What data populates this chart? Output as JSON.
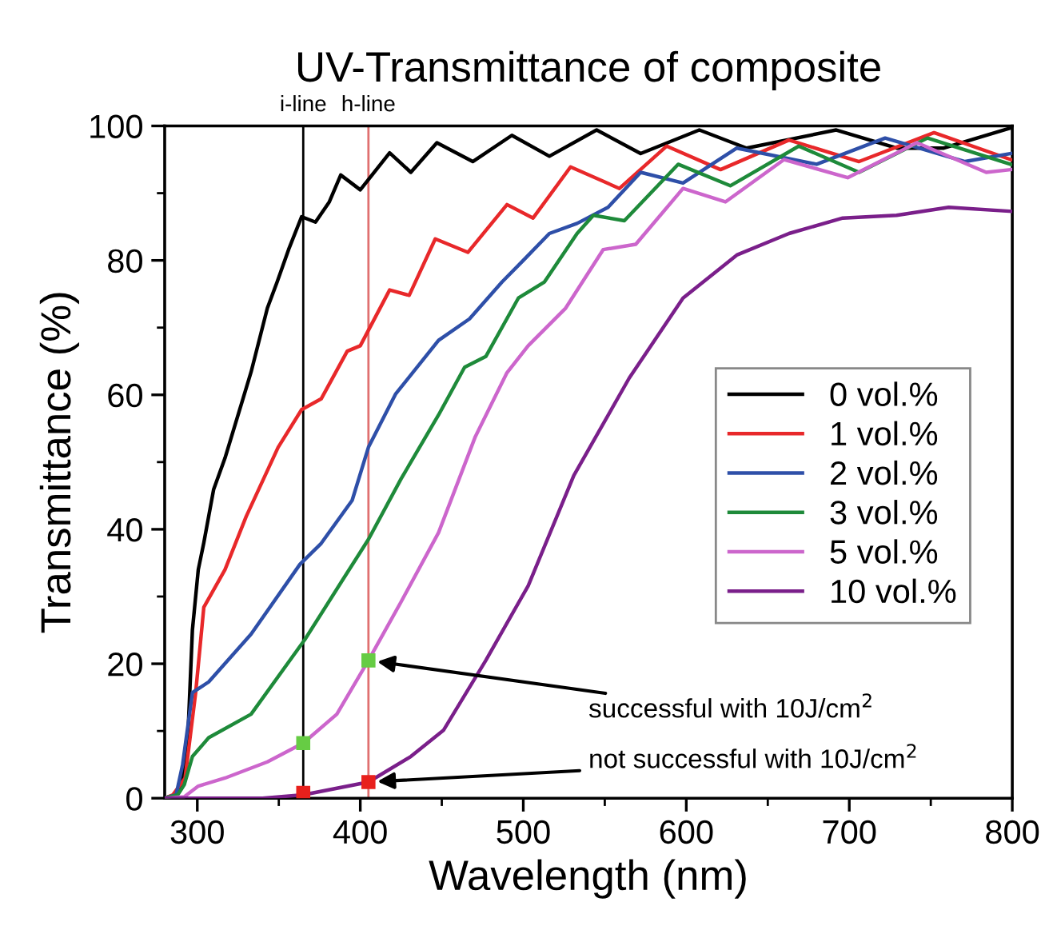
{
  "chart_data": {
    "type": "line",
    "title": "UV-Transmittance of composite",
    "xlabel": "Wavelength (nm)",
    "ylabel": "Transmittance (%)",
    "xlim": [
      280,
      800
    ],
    "xticks": [
      300,
      400,
      500,
      600,
      700,
      800
    ],
    "ylim": [
      0,
      100
    ],
    "yticks": [
      0,
      20,
      40,
      60,
      80,
      100
    ],
    "grid": false,
    "legend": "right",
    "line_style": "solid",
    "marker": "none",
    "series": [
      {
        "name": "0 vol.%",
        "color": "#000000",
        "x": [
          280,
          286,
          290,
          294,
          297,
          300.6,
          304,
          310,
          317,
          327,
          333,
          343,
          349,
          356,
          364,
          372.5,
          381,
          388,
          400,
          418,
          431,
          447,
          469,
          493,
          516,
          545,
          572,
          608,
          637,
          692,
          729,
          758,
          799
        ],
        "values": [
          0,
          0.5,
          2,
          7.8,
          25,
          34,
          38,
          45.9,
          50.6,
          58.6,
          63.4,
          72.9,
          76.8,
          81.6,
          86.5,
          85.7,
          88.7,
          92.7,
          90.5,
          96,
          93.1,
          97.5,
          94.7,
          98.6,
          95.5,
          99.4,
          95.9,
          99.4,
          96.7,
          99.4,
          96.7,
          96.7,
          99.7
        ]
      },
      {
        "name": "1 vol.%",
        "color": "#e8282a",
        "x": [
          280,
          285,
          292.5,
          299,
          304,
          317,
          330,
          349.6,
          364,
          376,
          392,
          400,
          418,
          430,
          446,
          466,
          490,
          506,
          529,
          559,
          588,
          621,
          663,
          706,
          752,
          799
        ],
        "values": [
          0,
          0.5,
          3,
          15.7,
          28.4,
          34,
          41.9,
          52.2,
          57.8,
          59.4,
          66.5,
          67.3,
          75.6,
          74.8,
          83.2,
          81.2,
          88.3,
          86.3,
          93.9,
          90.7,
          97,
          93.5,
          97.9,
          94.7,
          99,
          95
        ]
      },
      {
        "name": "2 vol.%",
        "color": "#2e4fa8",
        "x": [
          280,
          287,
          291,
          297,
          307,
          333,
          363,
          376,
          395,
          405,
          421.6,
          448,
          467,
          487,
          500,
          516,
          533,
          552,
          572,
          598,
          631,
          680,
          722,
          771,
          799
        ],
        "values": [
          0,
          0.5,
          5,
          15.7,
          17.3,
          24.4,
          34.8,
          37.9,
          44.3,
          52.2,
          60.1,
          68.1,
          71.3,
          76.8,
          80,
          84,
          85.5,
          87.9,
          93.1,
          91.5,
          96.7,
          94.3,
          98.2,
          94.7,
          95.9
        ]
      },
      {
        "name": "3 vol.%",
        "color": "#1e8a3a",
        "x": [
          280,
          288,
          292,
          297,
          307,
          333,
          366,
          389,
          405,
          425,
          448,
          464,
          477,
          497,
          513,
          533,
          543,
          562,
          595,
          627,
          669,
          706,
          748,
          799
        ],
        "values": [
          0,
          0.5,
          2,
          6.2,
          9,
          12.5,
          23.6,
          32.4,
          38.5,
          47.5,
          57,
          64.1,
          65.7,
          74.4,
          76.8,
          84,
          86.7,
          85.9,
          94.3,
          91.1,
          97,
          93.1,
          98.2,
          94.3
        ]
      },
      {
        "name": "5 vol.%",
        "color": "#cc66cc",
        "x": [
          280,
          292,
          300.6,
          317,
          343,
          365,
          385.6,
          405,
          425,
          448,
          470.6,
          490,
          503,
          526,
          549,
          569,
          598,
          624,
          660,
          699,
          741.5,
          784,
          799
        ],
        "values": [
          0,
          0.2,
          1.8,
          3,
          5.4,
          8.2,
          12.5,
          20.5,
          29.2,
          39.5,
          53.8,
          63.3,
          67.3,
          72.9,
          81.6,
          82.4,
          90.7,
          88.7,
          95,
          92.3,
          97.5,
          93.1,
          93.5
        ]
      },
      {
        "name": "10 vol.%",
        "color": "#7a1f8a",
        "x": [
          280,
          340,
          365,
          405,
          431,
          451,
          477,
          503,
          531,
          565,
          598,
          631,
          663,
          696,
          729,
          761,
          799
        ],
        "values": [
          0,
          0,
          0.5,
          2.4,
          6.2,
          10.1,
          20.5,
          31.6,
          48,
          62.5,
          74.4,
          80.8,
          84,
          86.3,
          86.7,
          87.9,
          87.3
        ]
      },
      {
        "type": "scatter",
        "marker": "square",
        "color": "#66cc44",
        "x": [
          365,
          405
        ],
        "values": [
          8.2,
          20.5
        ]
      },
      {
        "type": "scatter",
        "marker": "square",
        "color": "#e8201c",
        "x": [
          365,
          405
        ],
        "values": [
          0.8,
          2.4
        ]
      }
    ],
    "ref_lines": [
      {
        "axis": "x",
        "value": 365,
        "label": "i-line",
        "color": "#000000"
      },
      {
        "axis": "x",
        "value": 405,
        "label": "h-line",
        "color": "#e07070"
      }
    ],
    "annotations": [
      {
        "text": "successful with 10J/cm$^{2}$",
        "x": 405,
        "y": 20.5
      },
      {
        "text": "not successful with 10J/cm$^{2}$",
        "x": 405,
        "y": 2.4
      }
    ]
  }
}
